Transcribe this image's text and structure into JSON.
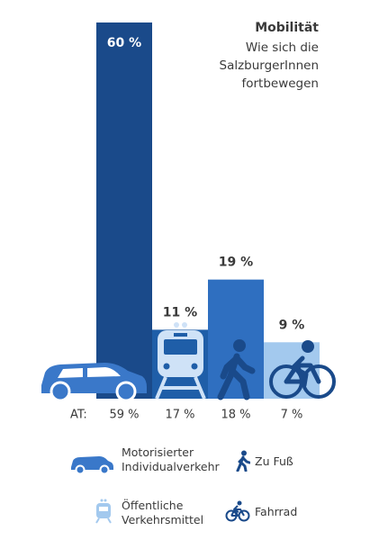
{
  "chart_data": {
    "type": "bar",
    "title": "Mobilität",
    "subtitle": [
      "Wie sich die",
      "SalzburgerInnen",
      "fortbewegen"
    ],
    "categories": [
      "Motorisierter Individualverkehr",
      "Öffentliche Verkehrsmittel",
      "Zu Fuß",
      "Fahrrad"
    ],
    "values": [
      60,
      11,
      19,
      9
    ],
    "value_labels": [
      "60 %",
      "11 %",
      "19 %",
      "9 %"
    ],
    "colors": [
      "#1a4a8a",
      "#1f5ea8",
      "#2f6fc0",
      "#a3c9ee"
    ],
    "ylim": [
      0,
      60
    ],
    "reference": {
      "label": "AT:",
      "values": [
        59,
        17,
        18,
        7
      ],
      "value_labels": [
        "59 %",
        "17 %",
        "18 %",
        "7 %"
      ]
    }
  }
}
